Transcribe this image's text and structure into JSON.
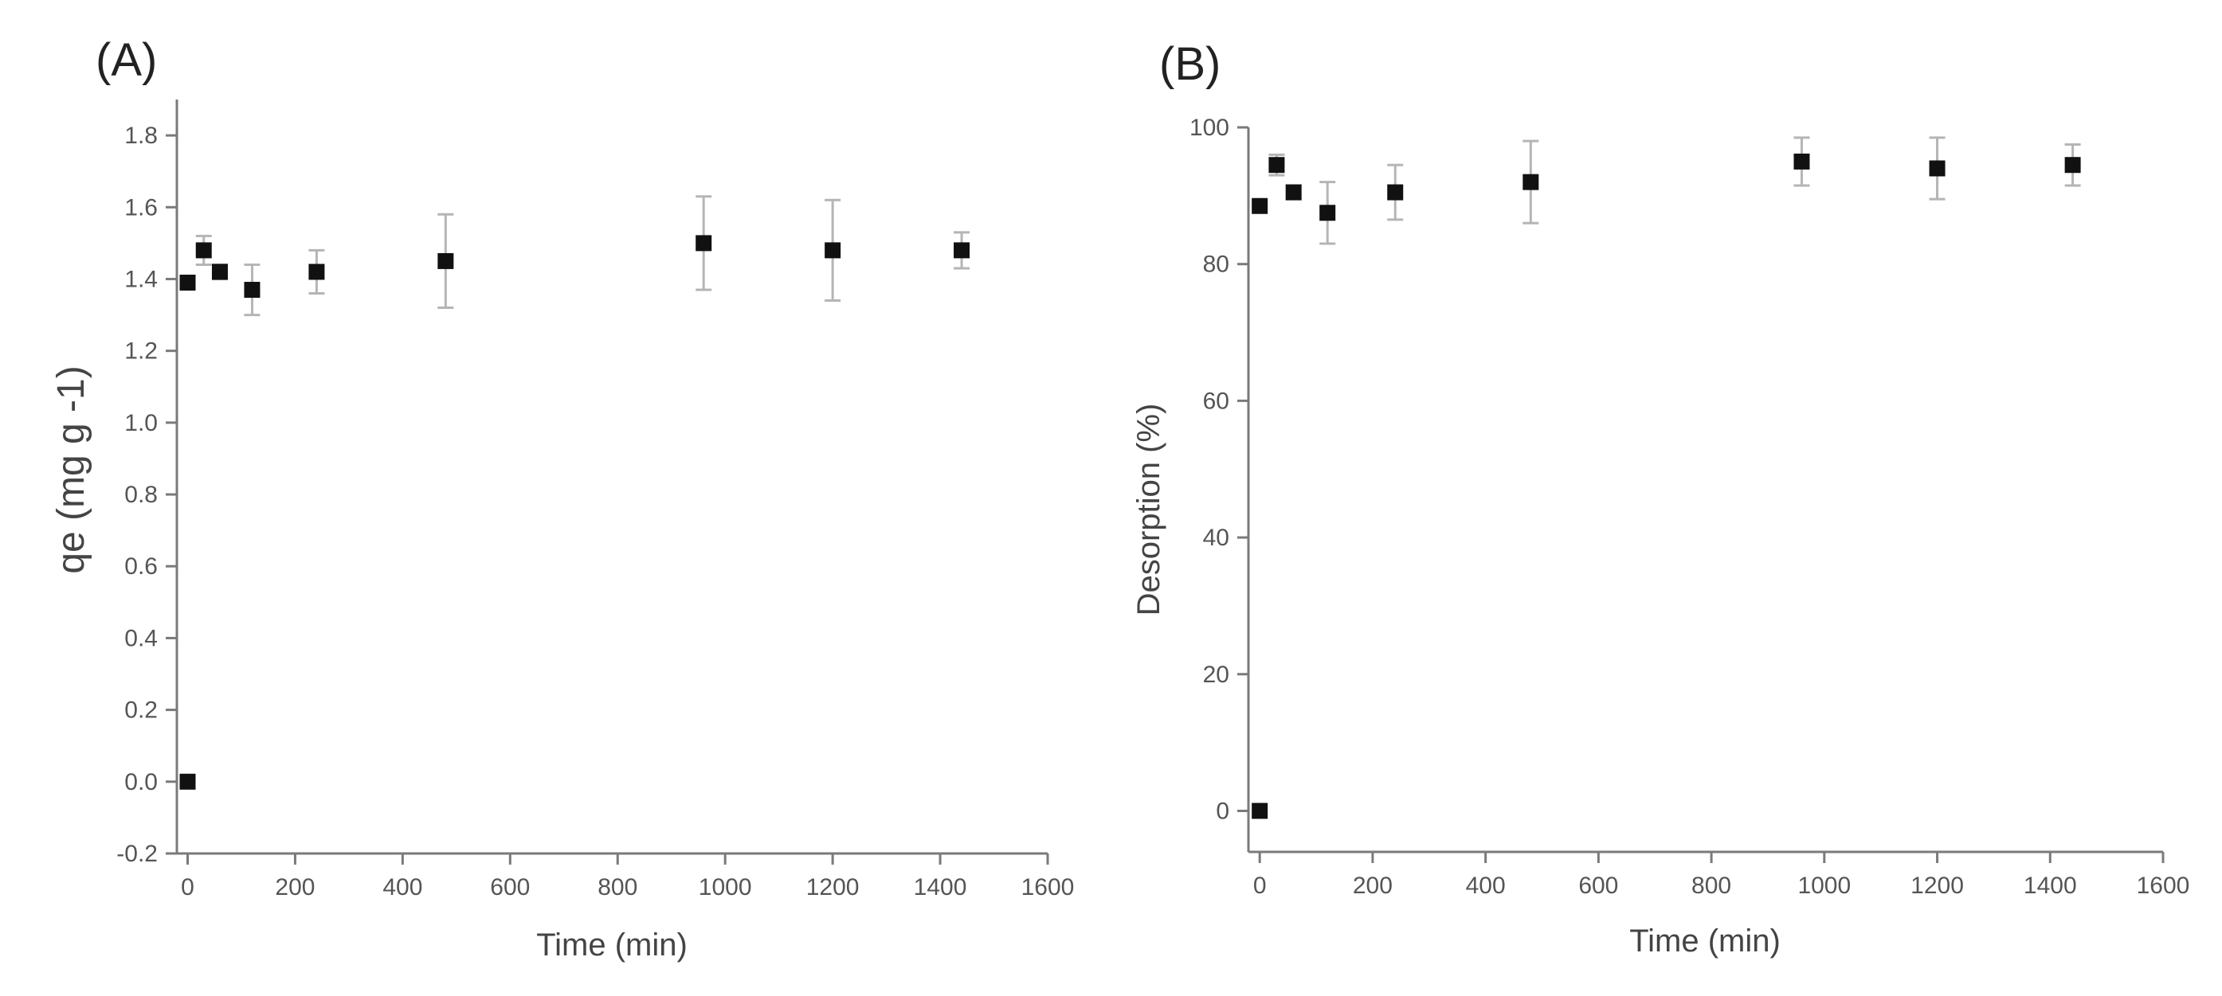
{
  "chart_data": [
    {
      "type": "scatter",
      "panel_label": "(A)",
      "xlabel": "Time (min)",
      "ylabel": "qe (mg g -1)",
      "ylabel_color": "#d4871a",
      "xlim": [
        -20,
        1600
      ],
      "ylim": [
        -0.2,
        1.9
      ],
      "xticks": [
        0,
        200,
        400,
        600,
        800,
        1000,
        1200,
        1400,
        1600
      ],
      "yticks": [
        -0.2,
        0.0,
        0.2,
        0.4,
        0.6,
        0.8,
        1.0,
        1.2,
        1.4,
        1.6,
        1.8
      ],
      "ytick_labels": [
        "-0.2",
        "0.0",
        "0.2",
        "0.4",
        "0.6",
        "0.8",
        "1.0",
        "1.2",
        "1.4",
        "1.6",
        "1.8"
      ],
      "points": [
        {
          "x": 0,
          "y": 0.0,
          "err": 0.0
        },
        {
          "x": 0,
          "y": 1.39,
          "err": 0.0
        },
        {
          "x": 30,
          "y": 1.48,
          "err": 0.04
        },
        {
          "x": 60,
          "y": 1.42,
          "err": 0.02
        },
        {
          "x": 120,
          "y": 1.37,
          "err": 0.07
        },
        {
          "x": 240,
          "y": 1.42,
          "err": 0.06
        },
        {
          "x": 480,
          "y": 1.45,
          "err": 0.13
        },
        {
          "x": 960,
          "y": 1.5,
          "err": 0.13
        },
        {
          "x": 1200,
          "y": 1.48,
          "err": 0.14
        },
        {
          "x": 1440,
          "y": 1.48,
          "err": 0.05
        }
      ]
    },
    {
      "type": "scatter",
      "panel_label": "(B)",
      "xlabel": "Time (min)",
      "ylabel": "Desorption (%)",
      "xlim": [
        -20,
        1600
      ],
      "ylim": [
        -6,
        100
      ],
      "xticks": [
        0,
        200,
        400,
        600,
        800,
        1000,
        1200,
        1400,
        1600
      ],
      "yticks": [
        0,
        20,
        40,
        60,
        80,
        100
      ],
      "ytick_labels": [
        "0",
        "20",
        "40",
        "60",
        "80",
        "100"
      ],
      "points": [
        {
          "x": 0,
          "y": 0,
          "err": 0
        },
        {
          "x": 0,
          "y": 88.5,
          "err": 0
        },
        {
          "x": 30,
          "y": 94.5,
          "err": 1.5
        },
        {
          "x": 60,
          "y": 90.5,
          "err": 1
        },
        {
          "x": 120,
          "y": 87.5,
          "err": 4.5
        },
        {
          "x": 240,
          "y": 90.5,
          "err": 4
        },
        {
          "x": 480,
          "y": 92,
          "err": 6
        },
        {
          "x": 960,
          "y": 95,
          "err": 3.5
        },
        {
          "x": 1200,
          "y": 94,
          "err": 4.5
        },
        {
          "x": 1440,
          "y": 94.5,
          "err": 3
        }
      ]
    }
  ]
}
